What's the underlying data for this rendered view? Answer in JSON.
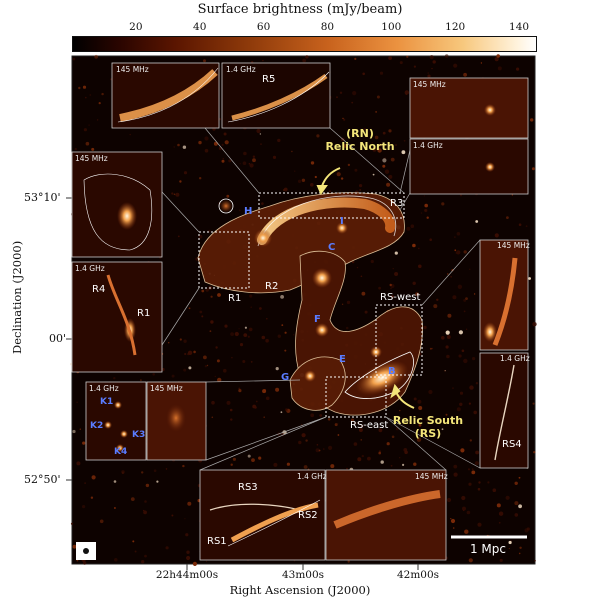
{
  "colorbar": {
    "title": "Surface brightness (mJy/beam)",
    "ticks": [
      {
        "value": 20,
        "label": "20"
      },
      {
        "value": 40,
        "label": "40"
      },
      {
        "value": 60,
        "label": "60"
      },
      {
        "value": 80,
        "label": "80"
      },
      {
        "value": 100,
        "label": "100"
      },
      {
        "value": 120,
        "label": "120"
      },
      {
        "value": 140,
        "label": "140"
      }
    ],
    "range": [
      0,
      145
    ]
  },
  "axes": {
    "x_title": "Right Ascension (J2000)",
    "y_title": "Declination (J2000)",
    "x_ticks": [
      "22h44m00s",
      "43m00s",
      "42m00s"
    ],
    "y_ticks": [
      "53°10'",
      "00'",
      "52°50'"
    ]
  },
  "labels": {
    "relic_north": "(RN)\nRelic North",
    "relic_south": "Relic South\n(RS)",
    "rs_west": "RS-west",
    "rs_east": "RS-east",
    "r1": "R1",
    "r2": "R2",
    "r3": "R3",
    "h": "H",
    "i": "I",
    "c": "C",
    "f": "F",
    "e": "E",
    "g": "G",
    "b": "B",
    "scale_bar": "1 Mpc"
  },
  "insets": {
    "r5_145": {
      "freq": "145 MHz"
    },
    "r5_14": {
      "freq": "1.4 GHz",
      "label": "R5"
    },
    "tr_145": {
      "freq": "145 MHz"
    },
    "tr_14": {
      "freq": "1.4 GHz"
    },
    "l_145": {
      "freq": "145 MHz"
    },
    "l_14": {
      "freq": "1.4 GHz",
      "label_a": "R4",
      "label_b": "R1"
    },
    "k_14": {
      "freq": "1.4 GHz",
      "labels": [
        "K1",
        "K2",
        "K3",
        "K4"
      ]
    },
    "k_145": {
      "freq": "145 MHz"
    },
    "rs4_145": {
      "freq": "145 MHz"
    },
    "rs4_14": {
      "freq": "1.4 GHz",
      "label": "RS4"
    },
    "b_14": {
      "freq": "1.4 GHz",
      "labels": [
        "RS3",
        "RS2",
        "RS1"
      ]
    },
    "b_145": {
      "freq": "145 MHz"
    }
  }
}
